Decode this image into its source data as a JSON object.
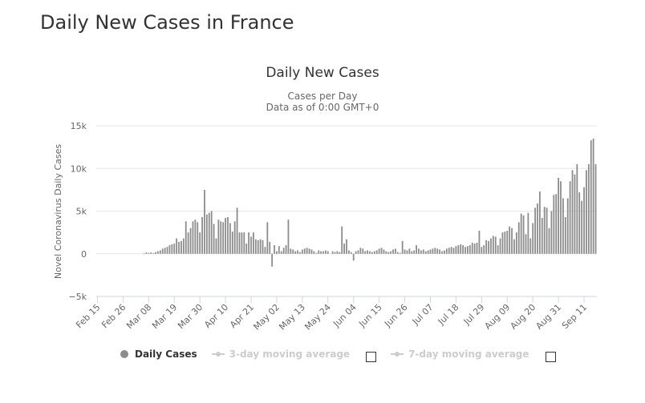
{
  "page": {
    "title": "Daily New Cases in France"
  },
  "chart_data": {
    "type": "bar",
    "title": "Daily New Cases",
    "subtitle_lines": [
      "Cases per Day",
      "Data as of 0:00 GMT+0"
    ],
    "ylabel": "Novel Coronavirus Daily Cases",
    "xlabel": "",
    "ylim": [
      -5000,
      15000
    ],
    "y_ticks": [
      -5000,
      0,
      5000,
      10000,
      15000
    ],
    "y_tick_labels": [
      "−5k",
      "0",
      "5k",
      "10k",
      "15k"
    ],
    "x_tick_labels": [
      "Feb 15",
      "Feb 26",
      "Mar 08",
      "Mar 19",
      "Mar 30",
      "Apr 10",
      "Apr 21",
      "May 02",
      "May 13",
      "May 24",
      "Jun 04",
      "Jun 15",
      "Jun 26",
      "Jul 07",
      "Jul 18",
      "Jul 29",
      "Aug 09",
      "Aug 20",
      "Aug 31",
      "Sep 11"
    ],
    "x_tick_index_step": 11,
    "grid": true,
    "bar_color": "#8c8c8c",
    "series": [
      {
        "name": "Daily Cases",
        "values": [
          0,
          0,
          0,
          0,
          0,
          0,
          0,
          0,
          0,
          0,
          0,
          0,
          0,
          0,
          0,
          0,
          0,
          0,
          0,
          0,
          50,
          150,
          100,
          150,
          80,
          200,
          300,
          400,
          600,
          700,
          800,
          1000,
          1100,
          1200,
          1800,
          1400,
          1500,
          1800,
          3800,
          2500,
          3000,
          3800,
          4000,
          3700,
          2500,
          4300,
          7500,
          4600,
          4800,
          5000,
          3500,
          1800,
          4000,
          3800,
          3700,
          4200,
          4300,
          3600,
          2600,
          3800,
          5400,
          2500,
          2500,
          2500,
          1200,
          2500,
          2000,
          2500,
          1700,
          1600,
          1700,
          1600,
          800,
          3700,
          1400,
          -1500,
          1000,
          300,
          900,
          300,
          700,
          1000,
          4000,
          600,
          500,
          300,
          400,
          200,
          500,
          600,
          700,
          600,
          500,
          300,
          100,
          400,
          300,
          300,
          400,
          300,
          0,
          300,
          200,
          300,
          200,
          3200,
          1200,
          1700,
          400,
          200,
          -800,
          300,
          400,
          700,
          600,
          300,
          400,
          300,
          200,
          300,
          400,
          600,
          700,
          500,
          300,
          200,
          300,
          500,
          600,
          200,
          100,
          1500,
          500,
          400,
          600,
          300,
          400,
          1000,
          600,
          400,
          500,
          300,
          400,
          500,
          600,
          700,
          600,
          500,
          300,
          400,
          600,
          700,
          800,
          700,
          900,
          1000,
          1100,
          1000,
          800,
          900,
          1000,
          1300,
          1200,
          1300,
          2700,
          800,
          1000,
          1600,
          1500,
          1800,
          2100,
          2000,
          1000,
          1800,
          2500,
          2600,
          2700,
          3200,
          3000,
          1700,
          2500,
          3700,
          4700,
          4500,
          2300,
          4800,
          1800,
          3600,
          5400,
          5900,
          7300,
          4200,
          5500,
          5400,
          3000,
          5000,
          6900,
          7000,
          8900,
          8500,
          6500,
          4300,
          6500,
          8500,
          9800,
          9300,
          10500,
          7200,
          6200,
          7800,
          9800,
          10500,
          13300,
          13500,
          10500
        ]
      },
      {
        "name": "3-day moving average",
        "visible": false
      },
      {
        "name": "7-day moving average",
        "visible": false
      }
    ]
  },
  "legend": {
    "items": [
      {
        "label": "Daily Cases"
      },
      {
        "label": "3-day moving average"
      },
      {
        "label": "7-day moving average"
      }
    ]
  }
}
